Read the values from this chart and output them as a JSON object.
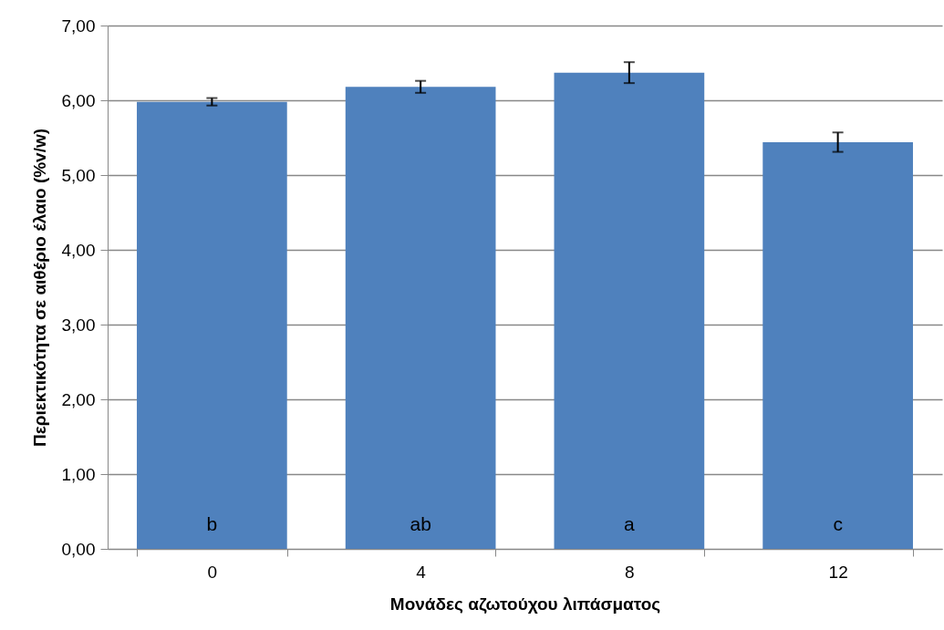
{
  "chart_data": {
    "type": "bar",
    "xlabel": "Μονάδες αζωτούχου λιπάσματος",
    "ylabel": "Περιεκτικότητα σε αιθέριο έλαιο (%v/w)",
    "categories": [
      "0",
      "4",
      "8",
      "12"
    ],
    "values": [
      5.98,
      6.18,
      6.37,
      5.44
    ],
    "errors": [
      0.05,
      0.08,
      0.14,
      0.13
    ],
    "color": "#4f81bd",
    "ylim": [
      0,
      7
    ],
    "yticks": [
      {
        "value": 0,
        "label": "0,00"
      },
      {
        "value": 1,
        "label": "1,00"
      },
      {
        "value": 2,
        "label": "2,00"
      },
      {
        "value": 3,
        "label": "3,00"
      },
      {
        "value": 4,
        "label": "4,00"
      },
      {
        "value": 5,
        "label": "5,00"
      },
      {
        "value": 6,
        "label": "6,00"
      },
      {
        "value": 7,
        "label": "7,00"
      }
    ],
    "grid": "y",
    "annotations": [
      "b",
      "ab",
      "a",
      "c"
    ]
  }
}
